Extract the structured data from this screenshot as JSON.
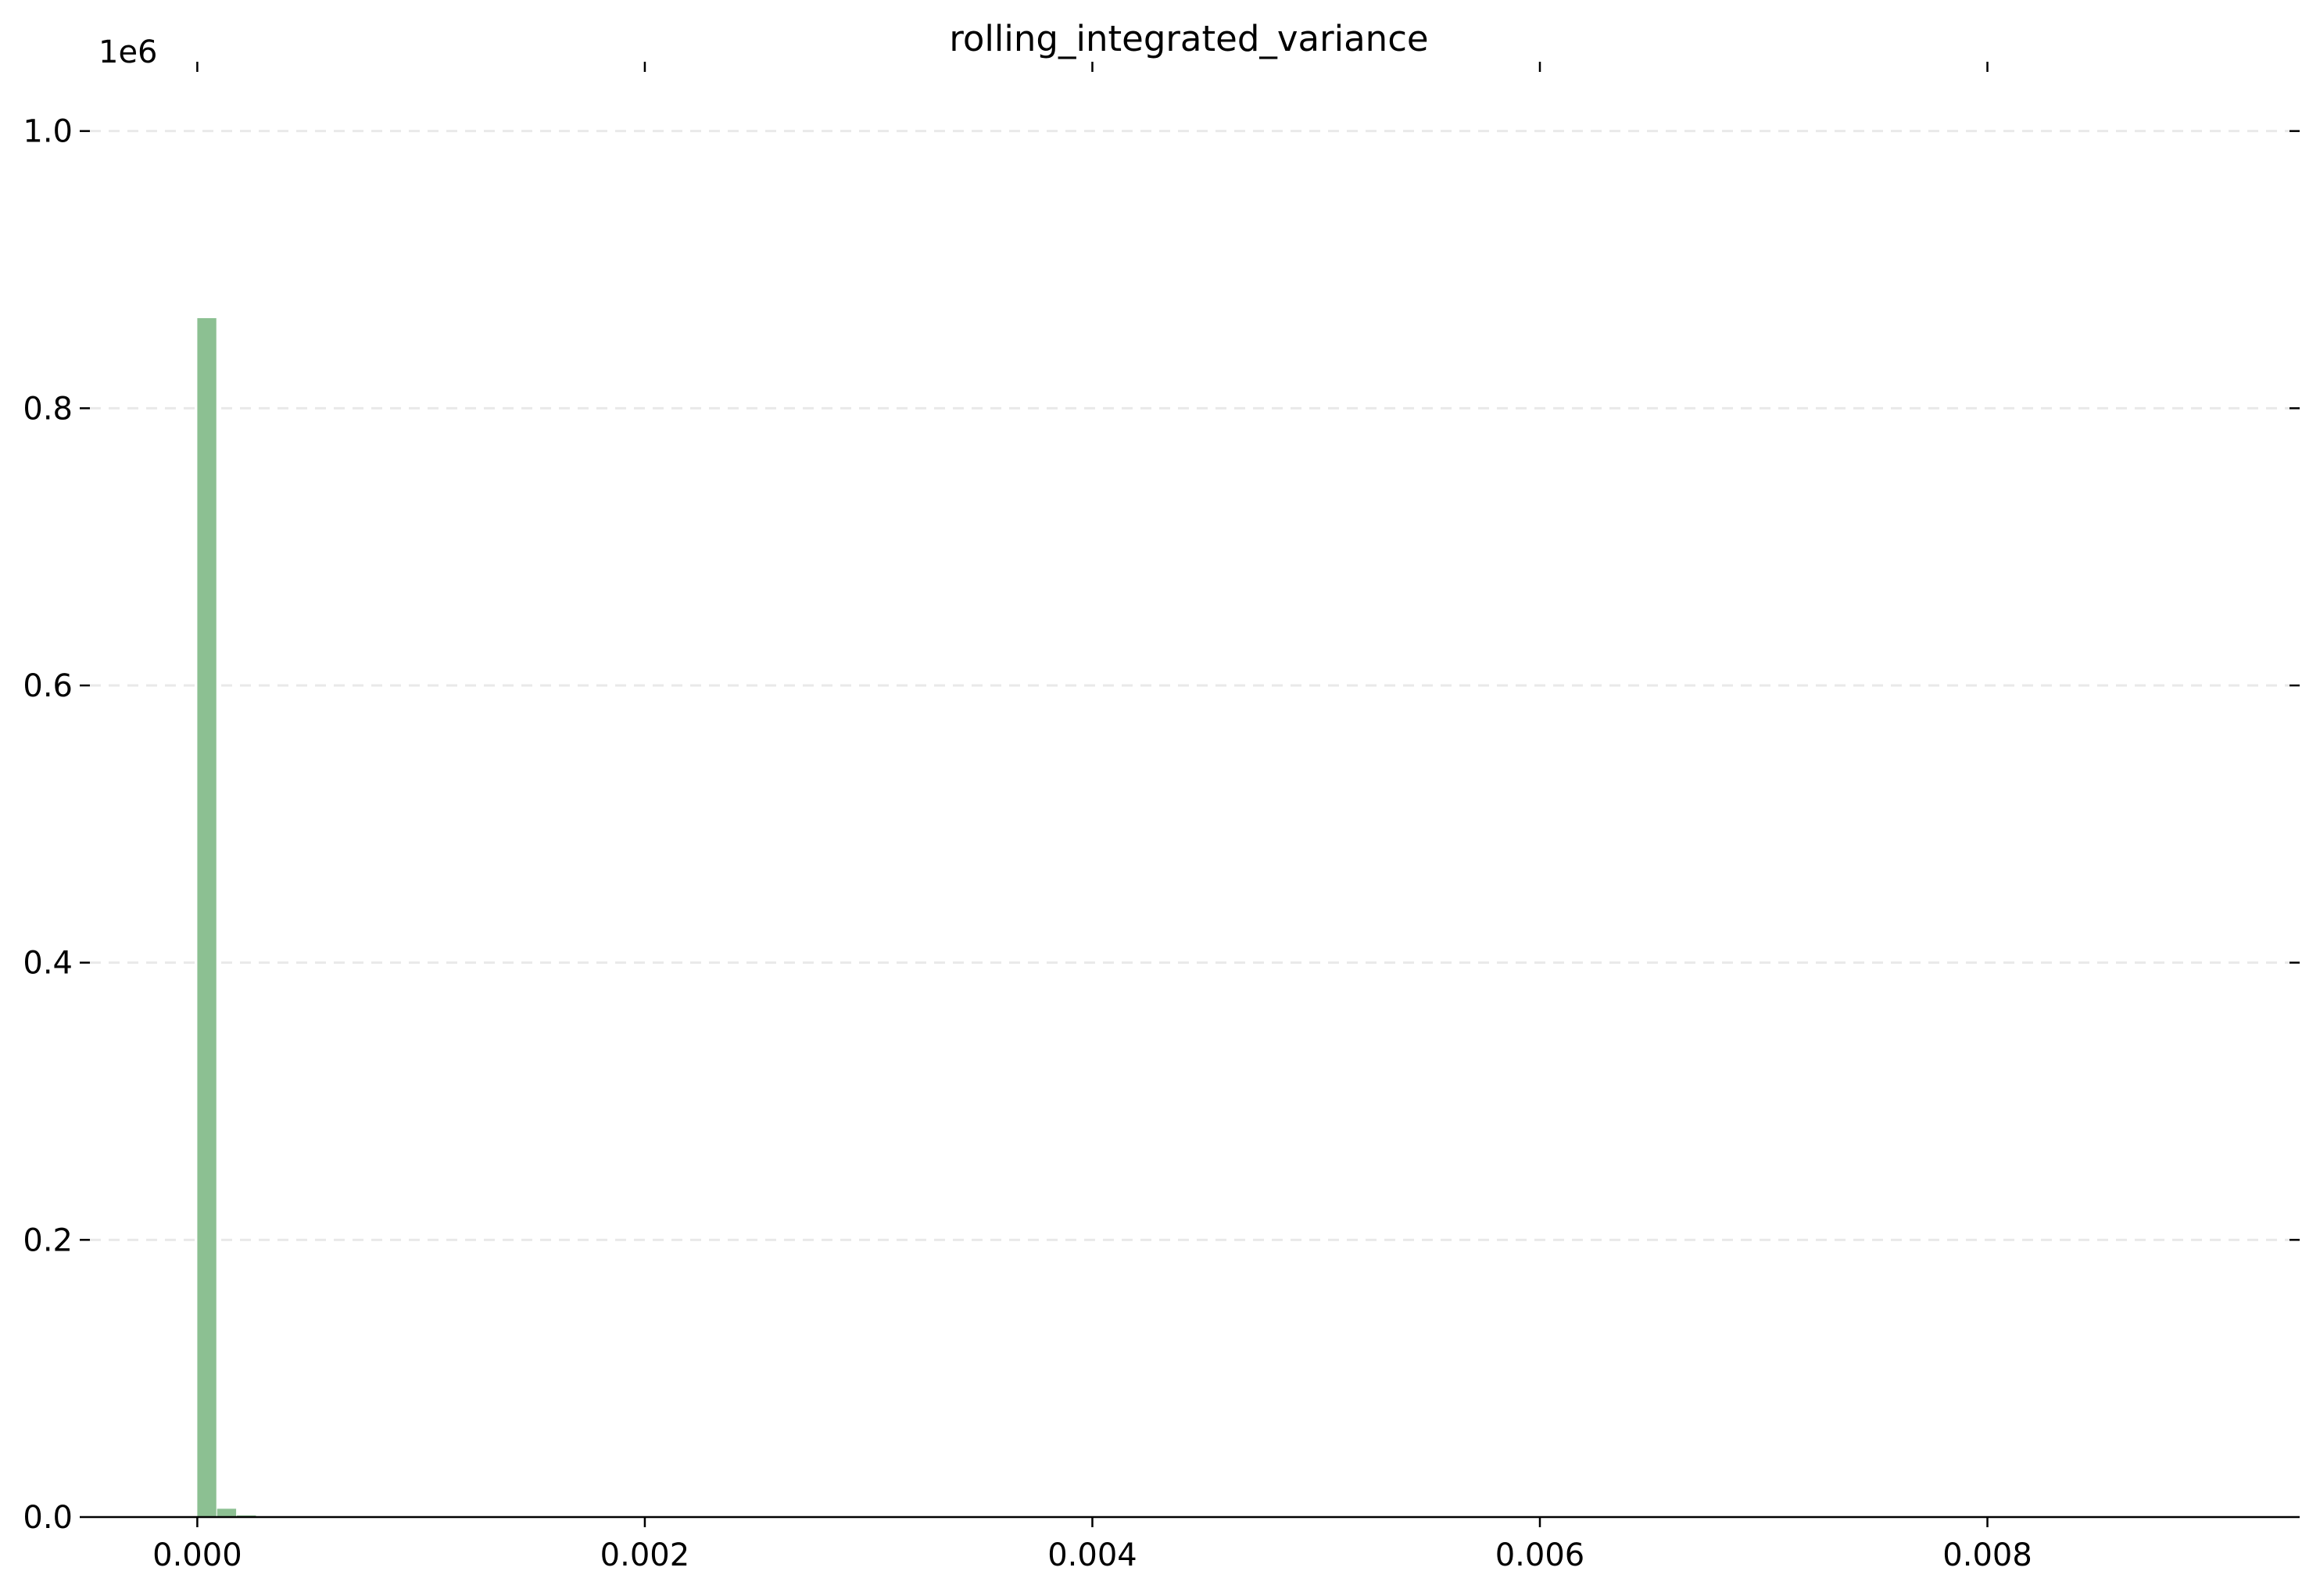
{
  "chart_data": {
    "type": "bar",
    "title": "rolling_integrated_variance",
    "xlabel": "",
    "ylabel": "",
    "y_offset_label": "1e6",
    "xlim": [
      -0.00048,
      0.00935
    ],
    "ylim": [
      0,
      1050000
    ],
    "x_ticks": [
      {
        "value": 0.0,
        "label": "0.000"
      },
      {
        "value": 0.002,
        "label": "0.002"
      },
      {
        "value": 0.004,
        "label": "0.004"
      },
      {
        "value": 0.006,
        "label": "0.006"
      },
      {
        "value": 0.008,
        "label": "0.008"
      }
    ],
    "y_ticks": [
      {
        "value": 0,
        "label": "0.0"
      },
      {
        "value": 200000,
        "label": "0.2"
      },
      {
        "value": 400000,
        "label": "0.4"
      },
      {
        "value": 600000,
        "label": "0.6"
      },
      {
        "value": 800000,
        "label": "0.8"
      },
      {
        "value": 1000000,
        "label": "1.0"
      }
    ],
    "grid": {
      "y": true,
      "style": "dashed"
    },
    "series": [
      {
        "color": "#8cc092",
        "bins": [
          {
            "x0": 0.0,
            "x1": 8.85e-05,
            "count": 865000
          },
          {
            "x0": 8.85e-05,
            "x1": 0.000177,
            "count": 6000
          },
          {
            "x0": 0.000177,
            "x1": 0.0002655,
            "count": 1200
          },
          {
            "x0": 0.0002655,
            "x1": 0.000354,
            "count": 300
          }
        ]
      }
    ]
  }
}
